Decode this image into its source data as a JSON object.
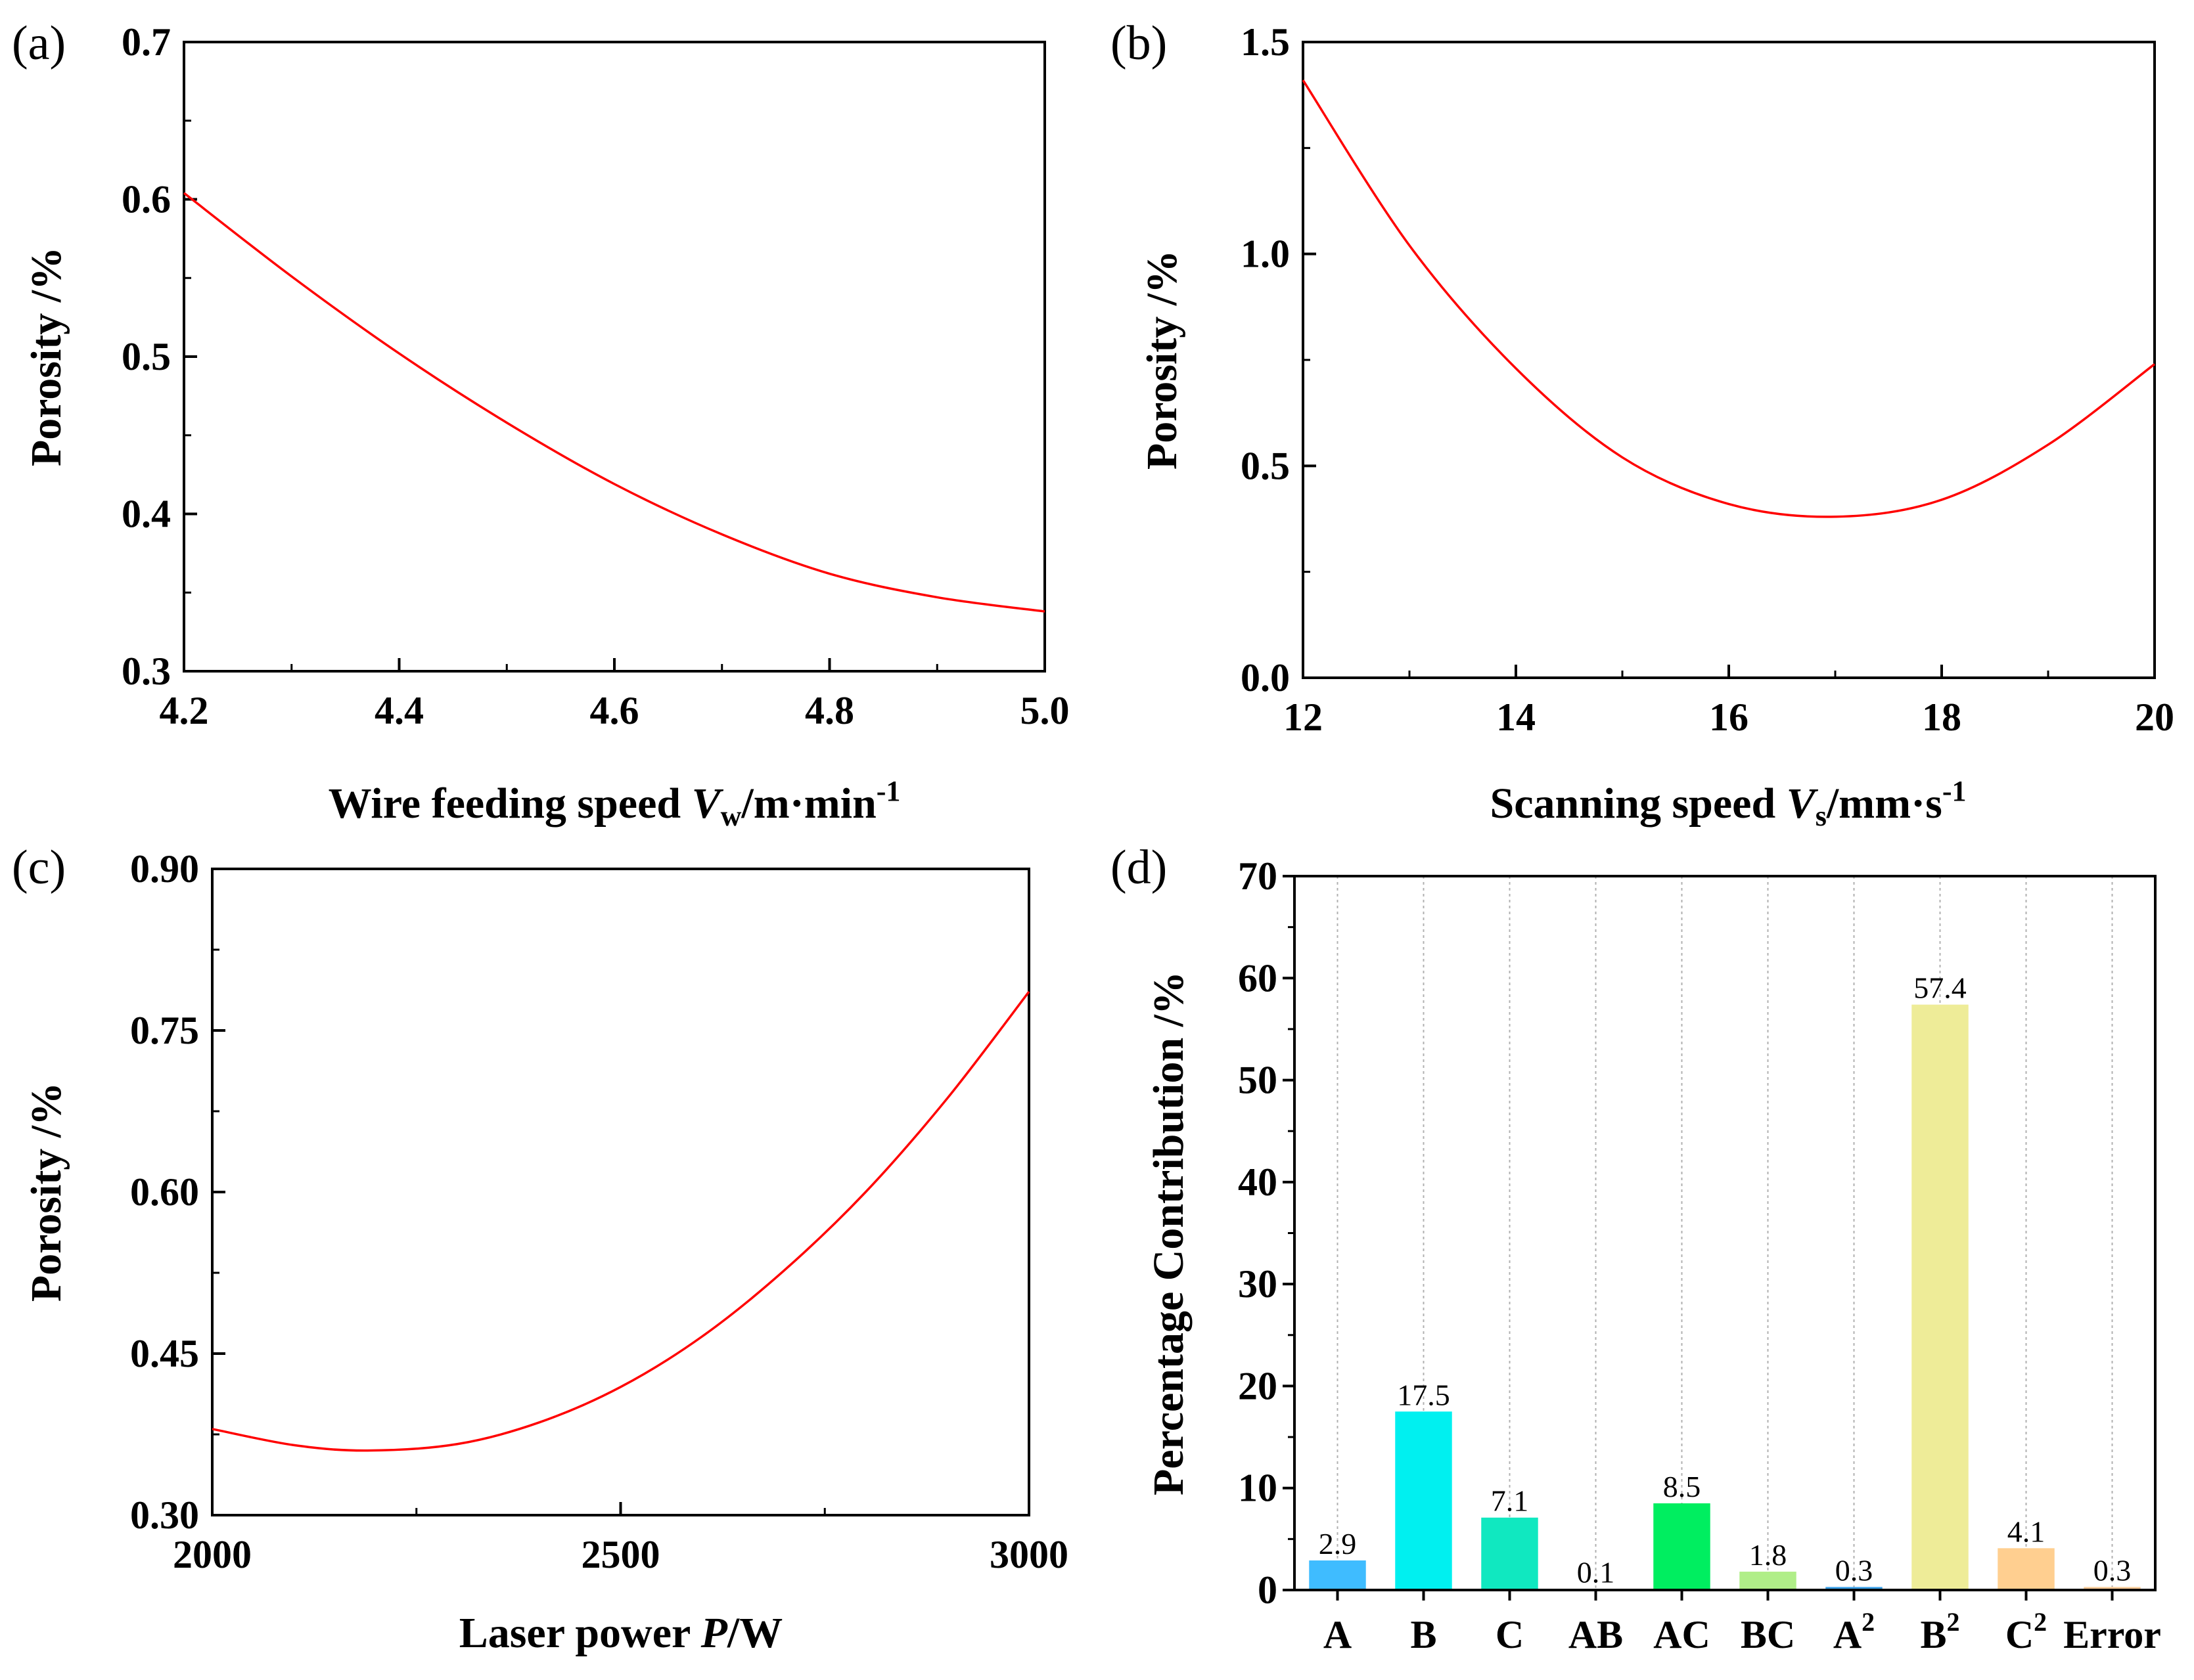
{
  "chart_data": [
    {
      "type": "line",
      "panel": "(a)",
      "xlabel_parts": [
        "Wire feeding speed ",
        "V",
        "w",
        "/m·min",
        "-1"
      ],
      "ylabel": "Porosity /%",
      "xlim": [
        4.2,
        5.0
      ],
      "ylim": [
        0.3,
        0.7
      ],
      "xticks": [
        "4.2",
        "4.4",
        "4.6",
        "4.8",
        "5.0"
      ],
      "yticks": [
        "0.3",
        "0.4",
        "0.5",
        "0.6",
        "0.7"
      ],
      "series": [
        {
          "name": "porosity",
          "color": "#ff0000",
          "x": [
            4.2,
            4.3,
            4.4,
            4.5,
            4.6,
            4.7,
            4.8,
            4.9,
            5.0
          ],
          "y": [
            0.604,
            0.551,
            0.502,
            0.458,
            0.419,
            0.387,
            0.362,
            0.347,
            0.338
          ]
        }
      ]
    },
    {
      "type": "line",
      "panel": "(b)",
      "xlabel_parts": [
        "Scanning speed ",
        "V",
        "s",
        "/mm·s",
        "-1"
      ],
      "ylabel": "Porosity /%",
      "xlim": [
        12,
        20
      ],
      "ylim": [
        0.0,
        1.5
      ],
      "xticks": [
        "12",
        "14",
        "16",
        "18",
        "20"
      ],
      "yticks": [
        "0.0",
        "0.5",
        "1.0",
        "1.5"
      ],
      "series": [
        {
          "name": "porosity",
          "color": "#ff0000",
          "x": [
            12,
            13,
            14,
            15,
            16,
            17,
            18,
            19,
            20
          ],
          "y": [
            1.41,
            1.02,
            0.73,
            0.52,
            0.41,
            0.38,
            0.42,
            0.55,
            0.74
          ]
        }
      ]
    },
    {
      "type": "line",
      "panel": "(c)",
      "xlabel_parts": [
        "Laser power ",
        "P",
        "",
        "/W",
        ""
      ],
      "ylabel": "Porosity /%",
      "xlim": [
        2000,
        3000
      ],
      "ylim": [
        0.3,
        0.9
      ],
      "xticks": [
        "2000",
        "2500",
        "3000"
      ],
      "yticks": [
        "0.30",
        "0.45",
        "0.60",
        "0.75",
        "0.90"
      ],
      "series": [
        {
          "name": "porosity",
          "color": "#ff0000",
          "x": [
            2000,
            2100,
            2190,
            2300,
            2400,
            2500,
            2600,
            2700,
            2800,
            2900,
            3000
          ],
          "y": [
            0.38,
            0.365,
            0.36,
            0.366,
            0.386,
            0.419,
            0.466,
            0.527,
            0.6,
            0.687,
            0.786
          ]
        }
      ]
    },
    {
      "type": "bar",
      "panel": "(d)",
      "ylabel": "Percentage Contribution /%",
      "ylim": [
        0,
        70
      ],
      "yticks": [
        "0",
        "10",
        "20",
        "30",
        "40",
        "50",
        "60",
        "70"
      ],
      "categories": [
        "A",
        "B",
        "C",
        "AB",
        "AC",
        "BC",
        "A²",
        "B²",
        "C²",
        "Error"
      ],
      "values": [
        2.9,
        17.5,
        7.1,
        0.1,
        8.5,
        1.8,
        0.3,
        57.4,
        4.1,
        0.3
      ],
      "labels": [
        "2.9",
        "17.5",
        "7.1",
        "0.1",
        "8.5",
        "1.8",
        "0.3",
        "57.4",
        "4.1",
        "0.3"
      ],
      "colors": [
        "#3fbcff",
        "#00f0f0",
        "#10e8c0",
        "#00c8a0",
        "#00ee60",
        "#b0ee88",
        "#3aa0e8",
        "#eeec98",
        "#ffcf90",
        "#ffcc99"
      ]
    }
  ]
}
